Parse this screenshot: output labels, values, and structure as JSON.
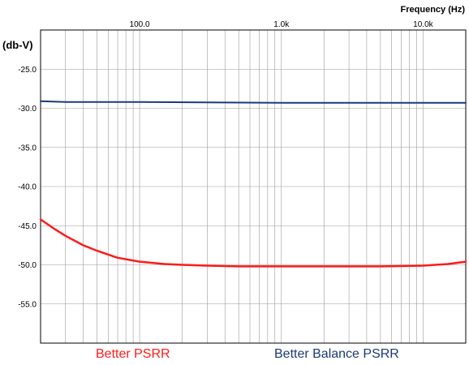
{
  "chart_data": {
    "type": "line",
    "xlabel": "Frequency  (Hz)",
    "ylabel": "(db-V)",
    "xscale": "log",
    "xlim": [
      20,
      20000
    ],
    "ylim": [
      -60,
      -20
    ],
    "grid": true,
    "x_ticks": [
      {
        "value": 100,
        "label": "100.0"
      },
      {
        "value": 1000,
        "label": "1.0k"
      },
      {
        "value": 10000,
        "label": "10.0k"
      }
    ],
    "y_ticks": [
      {
        "value": -25,
        "label": "-25.0"
      },
      {
        "value": -30,
        "label": "-30.0"
      },
      {
        "value": -35,
        "label": "-35.0"
      },
      {
        "value": -40,
        "label": "-40.0"
      },
      {
        "value": -45,
        "label": "-45.0"
      },
      {
        "value": -50,
        "label": "-50.0"
      },
      {
        "value": -55,
        "label": "-55.0"
      }
    ],
    "series": [
      {
        "name": "Better PSRR",
        "color": "#ff1a1a",
        "x": [
          20,
          25,
          30,
          40,
          50,
          70,
          100,
          150,
          200,
          300,
          500,
          1000,
          2000,
          5000,
          10000,
          15000,
          20000
        ],
        "y": [
          -44.2,
          -45.4,
          -46.3,
          -47.5,
          -48.2,
          -49.1,
          -49.6,
          -49.9,
          -50.0,
          -50.1,
          -50.2,
          -50.2,
          -50.2,
          -50.2,
          -50.1,
          -49.9,
          -49.6
        ]
      },
      {
        "name": "Better Balance PSRR",
        "color": "#1a3a7a",
        "x": [
          20,
          30,
          100,
          1000,
          10000,
          20000
        ],
        "y": [
          -29.1,
          -29.2,
          -29.2,
          -29.3,
          -29.3,
          -29.3
        ]
      }
    ]
  }
}
